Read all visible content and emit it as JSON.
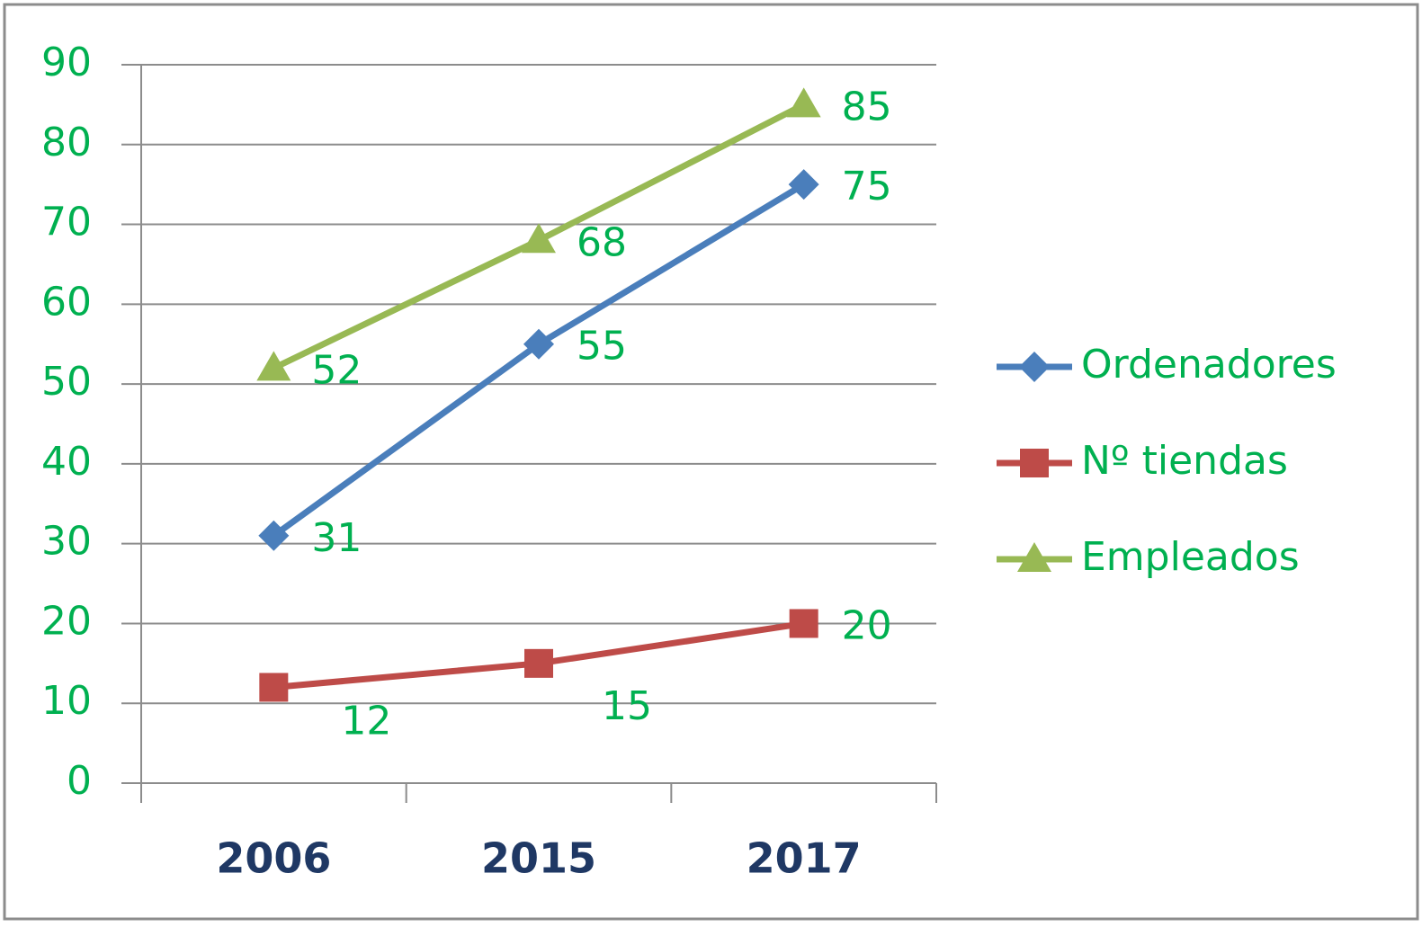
{
  "chart_data": {
    "type": "line",
    "categories": [
      "2006",
      "2015",
      "2017"
    ],
    "series": [
      {
        "name": "Ordenadores",
        "color": "#4a7ebb",
        "marker": "diamond",
        "values": [
          31,
          55,
          75
        ]
      },
      {
        "name": "Nº tiendas",
        "color": "#be4b48",
        "marker": "square",
        "values": [
          12,
          15,
          20
        ]
      },
      {
        "name": "Empleados",
        "color": "#98b954",
        "marker": "triangle",
        "values": [
          52,
          68,
          85
        ]
      }
    ],
    "ylim": [
      0,
      90
    ],
    "yticks": [
      0,
      10,
      20,
      30,
      40,
      50,
      60,
      70,
      80,
      90
    ],
    "grid": true,
    "legend": "right"
  }
}
